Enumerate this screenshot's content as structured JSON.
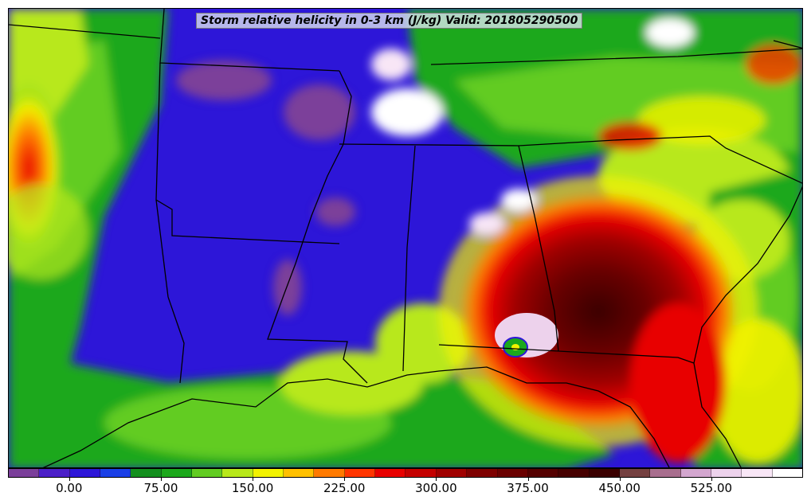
{
  "title": "Storm relative helicity in 0-3 km (J/kg) Valid: 201805290500",
  "colorbar": {
    "colors": [
      "#7b3f9a",
      "#4b1fc8",
      "#2d16d8",
      "#1a3fe6",
      "#138f1e",
      "#1ca81c",
      "#62cc22",
      "#b8e81a",
      "#f2f200",
      "#ffc000",
      "#ff7a00",
      "#ff3500",
      "#e80000",
      "#c40000",
      "#a00000",
      "#7e0000",
      "#6a0000",
      "#540000",
      "#460000",
      "#3a0000",
      "#744040",
      "#a86e8e",
      "#d3a6cf",
      "#edd2ec",
      "#f8e6f6",
      "#ffffff"
    ],
    "tick_labels": [
      "0.00",
      "75.00",
      "150.00",
      "225.00",
      "300.00",
      "375.00",
      "450.00",
      "525.00"
    ]
  }
}
